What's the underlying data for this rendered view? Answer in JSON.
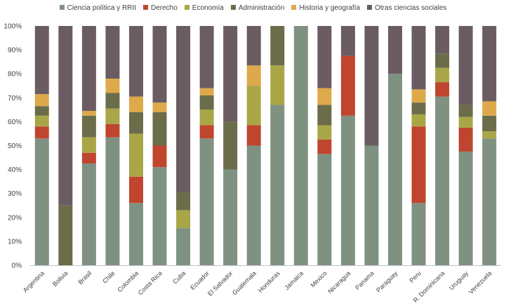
{
  "chart_data": {
    "type": "stacked-bar-100",
    "title": "",
    "xlabel": "",
    "ylabel": "",
    "ylim": [
      0,
      100
    ],
    "yticks": [
      "0%",
      "10%",
      "20%",
      "30%",
      "40%",
      "50%",
      "60%",
      "70%",
      "80%",
      "90%",
      "100%"
    ],
    "legend_position": "top",
    "grid": false,
    "categories": [
      "Argentina",
      "Bolivia",
      "Brasil",
      "Chile",
      "Colombia",
      "Costa Rica",
      "Cuba",
      "Ecuador",
      "El Salvador",
      "Guatemala",
      "Honduras",
      "Jamaica",
      "Mexico",
      "Nicaragua",
      "Panama",
      "Paraguay",
      "Peru",
      "R. Dominicana",
      "Uruguay",
      "Venezuela"
    ],
    "series": [
      {
        "name": "Ciencia política y RRII",
        "color": "#7f9281",
        "values": [
          53,
          0,
          42.5,
          53.5,
          26,
          41,
          15.5,
          53,
          40,
          50,
          67,
          100,
          46.5,
          62.5,
          50,
          80,
          26,
          70.5,
          47.5,
          53
        ]
      },
      {
        "name": "Derecho",
        "color": "#c0452e",
        "values": [
          5,
          0,
          4.5,
          5.5,
          11,
          9,
          0,
          5.5,
          0,
          8.5,
          0,
          0,
          6,
          25,
          0,
          0,
          32,
          6,
          10,
          0
        ]
      },
      {
        "name": "Economía",
        "color": "#a9a647",
        "values": [
          4.5,
          0,
          6.5,
          6.5,
          18,
          0,
          7.5,
          6.5,
          0,
          16.5,
          16.5,
          0,
          6,
          0,
          0,
          0,
          5,
          6,
          4.5,
          3
        ]
      },
      {
        "name": "Administración",
        "color": "#6b6d4a",
        "values": [
          4,
          25,
          9,
          6.5,
          9,
          14,
          7.5,
          6,
          20,
          0,
          16.5,
          0,
          8.5,
          0,
          0,
          0,
          5,
          6,
          5,
          6.5
        ]
      },
      {
        "name": "Historia y geografía",
        "color": "#dea94a",
        "values": [
          5,
          0,
          2,
          6,
          6.5,
          4,
          0,
          3,
          0,
          8.5,
          0,
          0,
          7,
          0,
          0,
          0,
          5.5,
          0,
          0,
          6
        ]
      },
      {
        "name": "Otras ciencias sociales",
        "color": "#6b5c63",
        "values": [
          28.5,
          75,
          35.5,
          22,
          29.5,
          32,
          69.5,
          26,
          40,
          16.5,
          0,
          0,
          26,
          12.5,
          50,
          20,
          26.5,
          11.5,
          33,
          31.5
        ]
      }
    ]
  }
}
